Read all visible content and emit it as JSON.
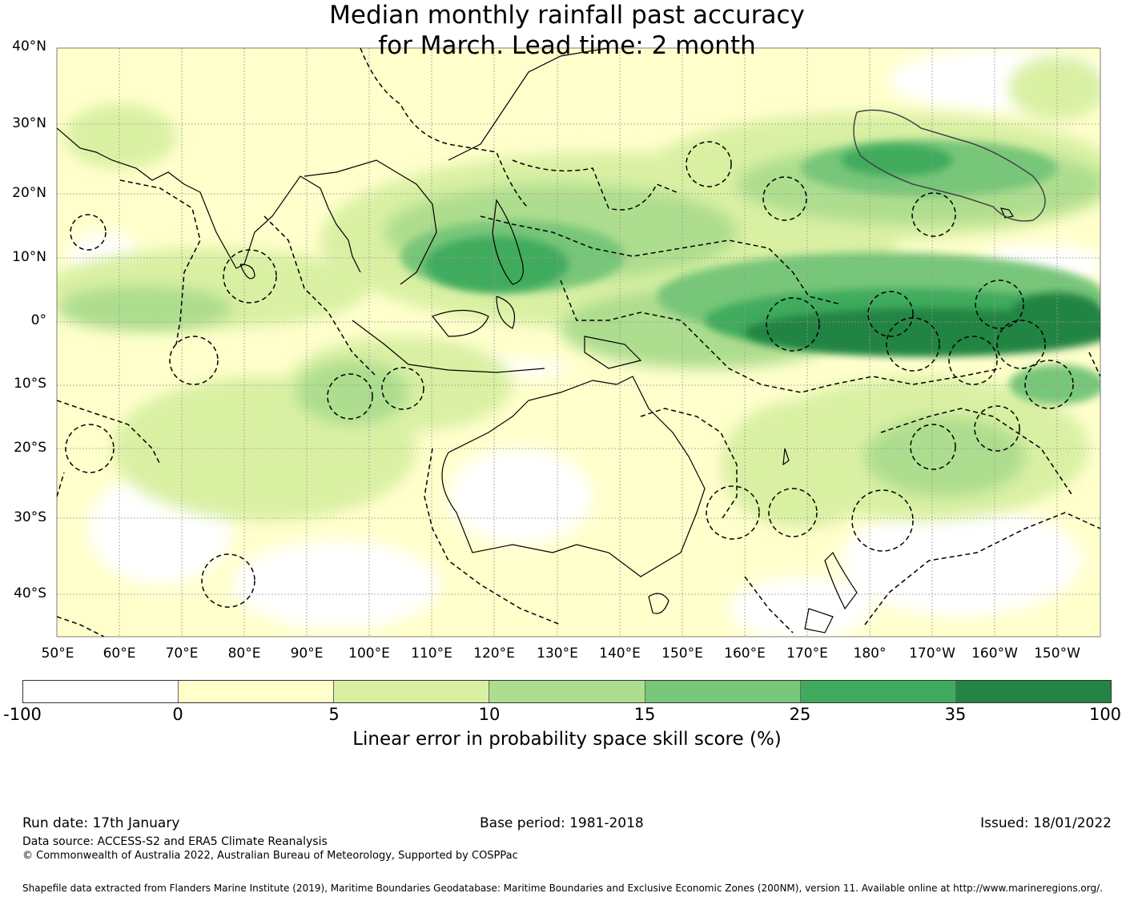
{
  "title": {
    "line1": "Median monthly rainfall past accuracy",
    "line2": "for March. Lead time: 2 month"
  },
  "map": {
    "lat_labels": [
      "40°N",
      "30°N",
      "20°N",
      "10°N",
      "0°",
      "10°S",
      "20°S",
      "30°S",
      "40°S"
    ],
    "lon_labels": [
      "50°E",
      "60°E",
      "70°E",
      "80°E",
      "90°E",
      "100°E",
      "110°E",
      "120°E",
      "130°E",
      "140°E",
      "150°E",
      "160°E",
      "170°E",
      "180°",
      "170°W",
      "160°W",
      "150°W"
    ]
  },
  "legend": {
    "colors": [
      "#ffffff",
      "#ffffcc",
      "#d9f0a3",
      "#addd8e",
      "#78c679",
      "#41ab5d",
      "#238443"
    ],
    "ticks": [
      "-100",
      "0",
      "5",
      "10",
      "15",
      "25",
      "35",
      "100"
    ],
    "label": "Linear error in probability space skill score (%)"
  },
  "footer": {
    "run_date": "Run date: 17th January",
    "base_period": "Base period: 1981-2018",
    "issued": "Issued: 18/01/2022",
    "data_source": "Data source: ACCESS-S2 and ERA5 Climate Reanalysis",
    "copyright": "© Commonwealth of Australia 2022, Australian Bureau of Meteorology, Supported by COSPPac",
    "shapefile": "Shapefile data extracted from Flanders Marine Institute (2019), Maritime Boundaries Geodatabase: Maritime Boundaries and Exclusive Economic Zones (200NM), version 11. Available online at http://www.marineregions.org/."
  }
}
